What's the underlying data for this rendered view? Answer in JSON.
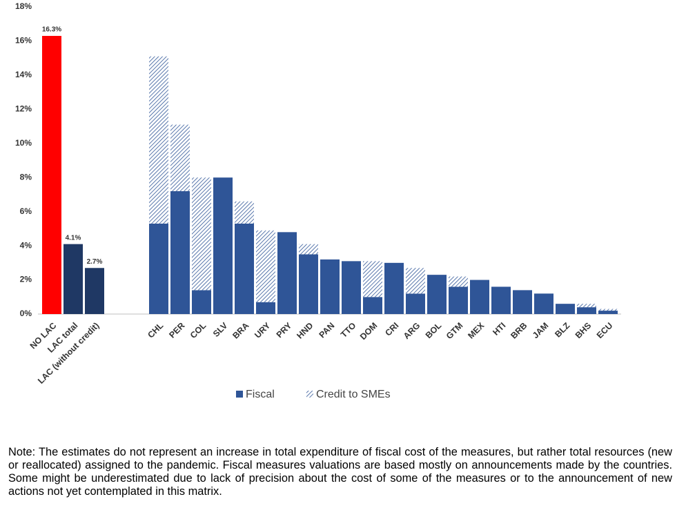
{
  "chart_data": {
    "type": "stacked_bar",
    "categories": [
      "NO LAC",
      "LAC total",
      "LAC (without credit)",
      null,
      null,
      "CHL",
      "PER",
      "COL",
      "SLV",
      "BRA",
      "URY",
      "PRY",
      "HND",
      "PAN",
      "TTO",
      "DOM",
      "CRI",
      "ARG",
      "BOL",
      "GTM",
      "MEX",
      "HTI",
      "BRB",
      "JAM",
      "BLZ",
      "BHS",
      "ECU"
    ],
    "series": [
      {
        "name": "Fiscal",
        "color": "#2f5597",
        "lead_colors": [
          "#ff0000",
          "#1f3864",
          "#1f3864"
        ],
        "values": [
          16.3,
          4.1,
          2.7,
          null,
          null,
          5.3,
          7.2,
          1.4,
          8.0,
          5.3,
          0.7,
          4.8,
          3.5,
          3.2,
          3.1,
          1.0,
          3.0,
          1.2,
          2.3,
          1.6,
          2.0,
          1.6,
          1.4,
          1.2,
          0.6,
          0.4,
          0.2
        ],
        "value_labels": [
          "16.3%",
          "4.1%",
          "2.7%",
          null,
          null,
          null,
          null,
          null,
          null,
          null,
          null,
          null,
          null,
          null,
          null,
          null,
          null,
          null,
          null,
          null,
          null,
          null,
          null,
          null,
          null,
          null,
          null
        ]
      },
      {
        "name": "Credit to SMEs",
        "color": "#2f5597",
        "pattern": "hatch",
        "values": [
          null,
          null,
          null,
          null,
          null,
          9.8,
          3.9,
          6.6,
          0,
          1.3,
          4.2,
          0,
          0.6,
          0,
          0,
          2.1,
          0,
          1.5,
          0,
          0.6,
          0,
          0,
          0,
          0,
          0,
          0.2,
          0.1
        ]
      }
    ],
    "ylim": [
      0,
      18
    ],
    "yticks": [
      {
        "value": 0,
        "label": "0%"
      },
      {
        "value": 2,
        "label": "2%"
      },
      {
        "value": 4,
        "label": "4%"
      },
      {
        "value": 6,
        "label": "6%"
      },
      {
        "value": 8,
        "label": "8%"
      },
      {
        "value": 10,
        "label": "10%"
      },
      {
        "value": 12,
        "label": "12%"
      },
      {
        "value": 14,
        "label": "14%"
      },
      {
        "value": 16,
        "label": "16%"
      },
      {
        "value": 18,
        "label": "18%"
      }
    ],
    "grid": false,
    "legend": "bottom",
    "note": "Note: The estimates do not represent an increase in total expenditure of fiscal cost of the measures, but rather total resources (new or reallocated) assigned to the pandemic. Fiscal measures valuations are based mostly on announcements made by the countries. Some might be underestimated due to lack of precision about the cost of some of the measures or to the announcement of new actions not yet contemplated in this matrix."
  }
}
